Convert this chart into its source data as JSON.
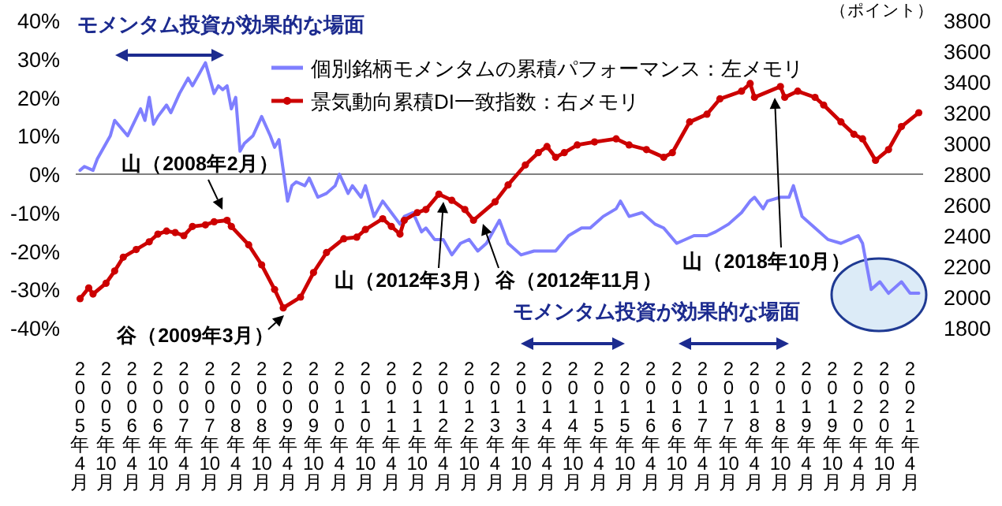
{
  "chart_data": {
    "type": "line",
    "y2label": "（ポイント）",
    "legend": "top right",
    "xlim": [
      "2005-03",
      "2021-07"
    ],
    "xticks": [
      {
        "value": "2005-04",
        "label": "2005年4月"
      },
      {
        "value": "2005-10",
        "label": "2005年10月"
      },
      {
        "value": "2006-04",
        "label": "2006年4月"
      },
      {
        "value": "2006-10",
        "label": "2006年10月"
      },
      {
        "value": "2007-04",
        "label": "2007年4月"
      },
      {
        "value": "2007-10",
        "label": "2007年10月"
      },
      {
        "value": "2008-04",
        "label": "2008年4月"
      },
      {
        "value": "2008-10",
        "label": "2008年10月"
      },
      {
        "value": "2009-04",
        "label": "2009年4月"
      },
      {
        "value": "2009-10",
        "label": "2009年10月"
      },
      {
        "value": "2010-04",
        "label": "2010年4月"
      },
      {
        "value": "2010-10",
        "label": "2010年10月"
      },
      {
        "value": "2011-04",
        "label": "2011年4月"
      },
      {
        "value": "2011-10",
        "label": "2011年10月"
      },
      {
        "value": "2012-04",
        "label": "2012年4月"
      },
      {
        "value": "2012-10",
        "label": "2012年10月"
      },
      {
        "value": "2013-04",
        "label": "2013年4月"
      },
      {
        "value": "2013-10",
        "label": "2013年10月"
      },
      {
        "value": "2014-04",
        "label": "2014年4月"
      },
      {
        "value": "2014-10",
        "label": "2014年10月"
      },
      {
        "value": "2015-04",
        "label": "2015年4月"
      },
      {
        "value": "2015-10",
        "label": "2015年10月"
      },
      {
        "value": "2016-04",
        "label": "2016年4月"
      },
      {
        "value": "2016-10",
        "label": "2016年10月"
      },
      {
        "value": "2017-04",
        "label": "2017年4月"
      },
      {
        "value": "2017-10",
        "label": "2017年10月"
      },
      {
        "value": "2018-04",
        "label": "2018年4月"
      },
      {
        "value": "2018-10",
        "label": "2018年10月"
      },
      {
        "value": "2019-04",
        "label": "2019年4月"
      },
      {
        "value": "2019-10",
        "label": "2019年10月"
      },
      {
        "value": "2020-04",
        "label": "2020年4月"
      },
      {
        "value": "2020-10",
        "label": "2020年10月"
      },
      {
        "value": "2021-04",
        "label": "2021年4月"
      }
    ],
    "ylim": [
      -40,
      40
    ],
    "yticks": [
      {
        "value": -40,
        "label": "-40%"
      },
      {
        "value": -30,
        "label": "-30%"
      },
      {
        "value": -20,
        "label": "-20%"
      },
      {
        "value": -10,
        "label": "-10%"
      },
      {
        "value": 0,
        "label": "0%"
      },
      {
        "value": 10,
        "label": "10%"
      },
      {
        "value": 20,
        "label": "20%"
      },
      {
        "value": 30,
        "label": "30%"
      },
      {
        "value": 40,
        "label": "40%"
      }
    ],
    "y2lim": [
      1800,
      3800
    ],
    "y2ticks": [
      1800,
      2000,
      2200,
      2400,
      2600,
      2800,
      3000,
      3200,
      3400,
      3600,
      3800
    ],
    "ref_lines": [
      {
        "axis": "y",
        "value": 0,
        "color": "#808080"
      }
    ],
    "series": [
      {
        "name": "個別銘柄モメンタムの累積パフォーマンス：左メモリ",
        "color": "#7f7fff",
        "axis": "y",
        "marker": "none",
        "x": [
          "2005-04",
          "2005-05",
          "2005-07",
          "2005-08",
          "2005-10",
          "2005-11",
          "2005-12",
          "2006-03",
          "2006-06",
          "2006-07",
          "2006-08",
          "2006-09",
          "2006-10",
          "2006-12",
          "2007-01",
          "2007-03",
          "2007-05",
          "2007-06",
          "2007-08",
          "2007-09",
          "2007-11",
          "2007-12",
          "2008-01",
          "2008-02",
          "2008-03",
          "2008-04",
          "2008-05",
          "2008-06",
          "2008-08",
          "2008-10",
          "2008-12",
          "2009-01",
          "2009-02",
          "2009-04",
          "2009-05",
          "2009-06",
          "2009-08",
          "2009-09",
          "2009-11",
          "2010-01",
          "2010-03",
          "2010-04",
          "2010-06",
          "2010-07",
          "2010-09",
          "2010-10",
          "2010-12",
          "2011-01",
          "2011-02",
          "2011-04",
          "2011-06",
          "2011-07",
          "2011-09",
          "2011-11",
          "2011-12",
          "2012-02",
          "2012-04",
          "2012-06",
          "2012-08",
          "2012-10",
          "2012-12",
          "2013-02",
          "2013-03",
          "2013-05",
          "2013-07",
          "2013-10",
          "2014-01",
          "2014-06",
          "2014-09",
          "2014-12",
          "2015-02",
          "2015-05",
          "2015-08",
          "2015-09",
          "2015-11",
          "2016-02",
          "2016-05",
          "2016-07",
          "2016-10",
          "2017-02",
          "2017-05",
          "2017-07",
          "2017-10",
          "2018-01",
          "2018-03",
          "2018-04",
          "2018-06",
          "2018-07",
          "2018-10",
          "2018-12",
          "2019-01",
          "2019-03",
          "2019-06",
          "2019-09",
          "2019-12",
          "2020-02",
          "2020-04",
          "2020-05",
          "2020-07",
          "2020-09",
          "2020-11",
          "2021-02",
          "2021-04",
          "2021-06"
        ],
        "values": [
          1,
          2,
          1,
          4,
          8,
          10,
          14,
          10,
          17,
          14,
          20,
          13,
          15,
          18,
          16,
          21,
          25,
          23,
          27,
          29,
          21,
          23,
          22,
          23,
          17,
          20,
          6,
          8,
          10,
          15,
          10,
          7,
          9,
          -7,
          -3,
          -2,
          -3,
          -1,
          -6,
          -5,
          -3,
          0,
          -5,
          -3,
          -6,
          -3,
          -11,
          -9,
          -7,
          -10,
          -13,
          -11,
          -10,
          -15,
          -14,
          -17,
          -17,
          -21,
          -18,
          -17,
          -20,
          -18,
          -16,
          -12,
          -18,
          -21,
          -20,
          -20,
          -16,
          -14,
          -14,
          -11,
          -9,
          -7,
          -11,
          -10,
          -13,
          -14,
          -18,
          -16,
          -16,
          -15,
          -13,
          -10,
          -7,
          -6,
          -9,
          -7,
          -6,
          -6,
          -3,
          -11,
          -14,
          -17,
          -18,
          -17,
          -16,
          -18,
          -30,
          -28,
          -31,
          -28,
          -31,
          -31
        ]
      },
      {
        "name": "景気動向累積DI一致指数：右メモリ",
        "color": "#cc0000",
        "axis": "y2",
        "marker": "circle",
        "x": [
          "2005-04",
          "2005-06",
          "2005-07",
          "2005-10",
          "2005-12",
          "2006-02",
          "2006-05",
          "2006-08",
          "2006-10",
          "2006-12",
          "2007-02",
          "2007-04",
          "2007-06",
          "2007-09",
          "2007-11",
          "2008-02",
          "2008-03",
          "2008-07",
          "2008-10",
          "2009-01",
          "2009-03",
          "2009-07",
          "2009-10",
          "2010-01",
          "2010-05",
          "2010-08",
          "2010-10",
          "2011-02",
          "2011-04",
          "2011-06",
          "2011-07",
          "2011-10",
          "2011-12",
          "2012-03",
          "2012-06",
          "2012-09",
          "2012-11",
          "2013-04",
          "2013-07",
          "2013-11",
          "2014-02",
          "2014-04",
          "2014-06",
          "2014-08",
          "2014-11",
          "2015-03",
          "2015-08",
          "2015-11",
          "2016-03",
          "2016-07",
          "2016-09",
          "2017-01",
          "2017-05",
          "2017-08",
          "2018-01",
          "2018-03",
          "2018-04",
          "2018-10",
          "2018-11",
          "2019-02",
          "2019-06",
          "2019-08",
          "2019-12",
          "2020-03",
          "2020-05",
          "2020-08",
          "2020-11",
          "2021-02",
          "2021-06"
        ],
        "values": [
          1990,
          2060,
          2020,
          2090,
          2170,
          2260,
          2310,
          2360,
          2410,
          2430,
          2420,
          2400,
          2460,
          2470,
          2490,
          2500,
          2460,
          2340,
          2210,
          2050,
          1930,
          2000,
          2160,
          2290,
          2380,
          2390,
          2440,
          2510,
          2460,
          2410,
          2500,
          2550,
          2570,
          2670,
          2630,
          2570,
          2500,
          2620,
          2730,
          2860,
          2940,
          2980,
          2910,
          2940,
          2990,
          3010,
          3030,
          2990,
          2960,
          2910,
          2940,
          3140,
          3190,
          3290,
          3340,
          3390,
          3300,
          3370,
          3300,
          3340,
          3300,
          3250,
          3140,
          3060,
          3030,
          2890,
          2960,
          3110,
          3200
        ]
      }
    ],
    "annotations": [
      "山（2008年2月）",
      "谷（2009年3月）",
      "山（2012年3月）",
      "谷（2012年11月）",
      "山（2018年10月）",
      "モメンタム投資が効果的な場面",
      "モメンタム投資が効果的な場面"
    ]
  }
}
